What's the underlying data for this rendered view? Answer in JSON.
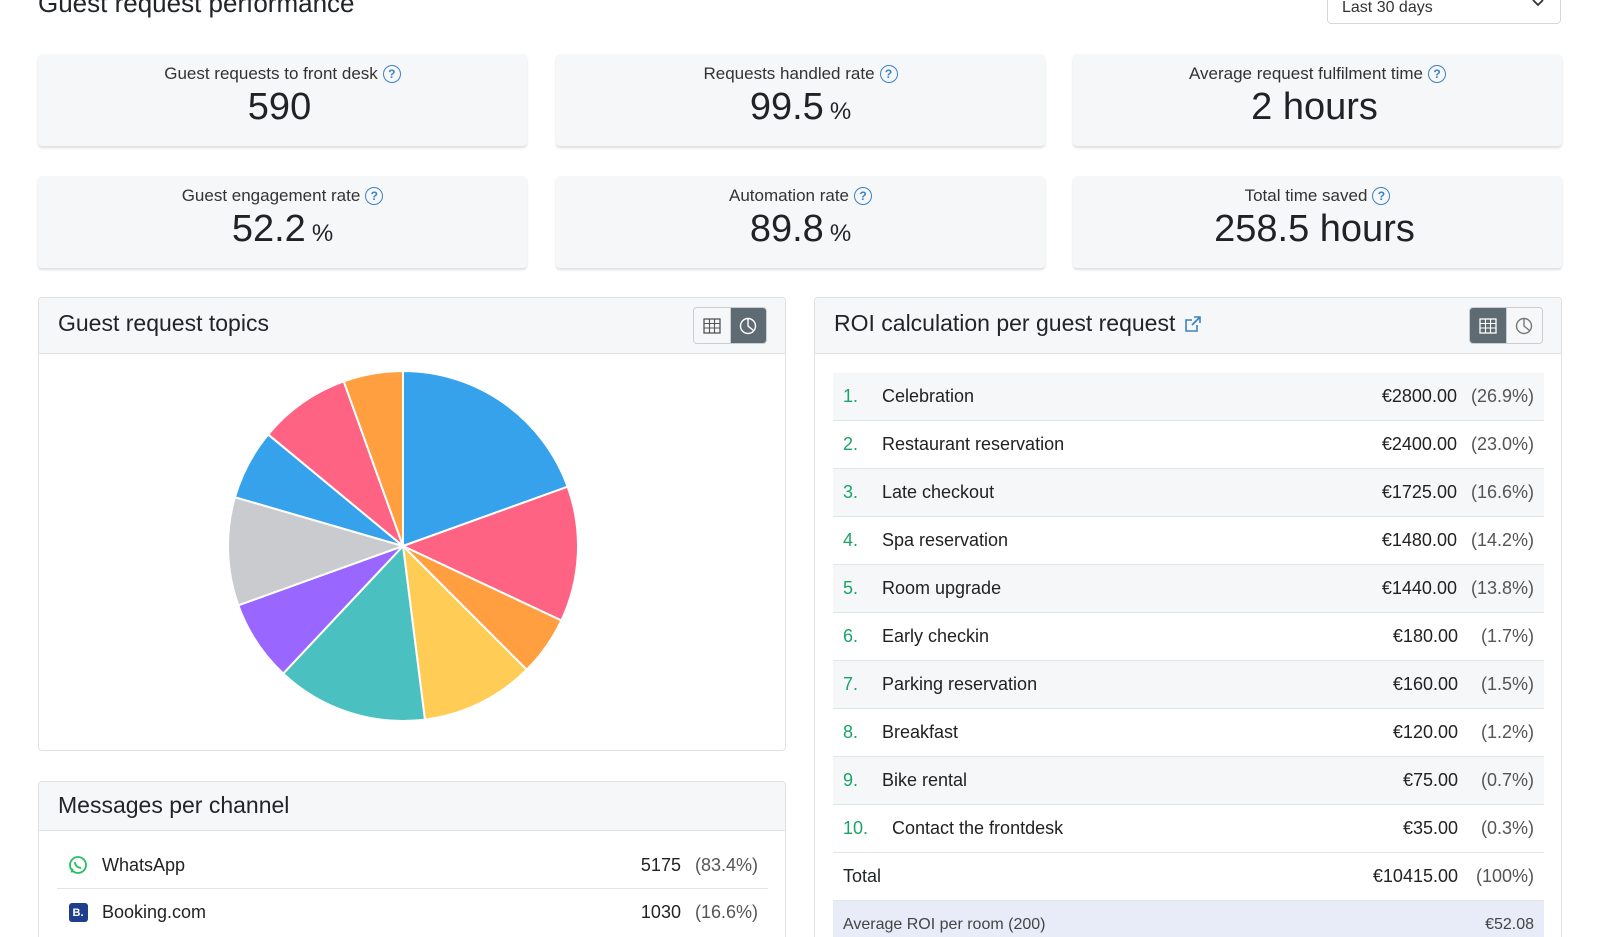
{
  "header": {
    "title": "Guest request performance",
    "date_range": "Last 30 days"
  },
  "kpis": [
    {
      "label": "Guest requests to front desk",
      "value": "590",
      "unit": ""
    },
    {
      "label": "Requests handled rate",
      "value": "99.5",
      "unit": "%"
    },
    {
      "label": "Average request fulfilment time",
      "value": "2 hours",
      "unit": ""
    },
    {
      "label": "Guest engagement rate",
      "value": "52.2",
      "unit": "%"
    },
    {
      "label": "Automation rate",
      "value": "89.8",
      "unit": "%"
    },
    {
      "label": "Total time saved",
      "value": "258.5 hours",
      "unit": ""
    }
  ],
  "topics_card": {
    "title": "Guest request topics",
    "active_view": "pie"
  },
  "chart_data": {
    "type": "pie",
    "title": "",
    "slices": [
      {
        "value": 19.5,
        "color": "#36a2eb"
      },
      {
        "value": 12.5,
        "color": "#ff6384"
      },
      {
        "value": 5.5,
        "color": "#ff9f40"
      },
      {
        "value": 10.5,
        "color": "#ffcd56"
      },
      {
        "value": 14.0,
        "color": "#4bc0c0"
      },
      {
        "value": 7.5,
        "color": "#9966ff"
      },
      {
        "value": 10.0,
        "color": "#c9cbcf"
      },
      {
        "value": 6.5,
        "color": "#36a2eb"
      },
      {
        "value": 8.5,
        "color": "#ff6384"
      },
      {
        "value": 5.5,
        "color": "#ff9f40"
      }
    ]
  },
  "roi_card": {
    "title": "ROI calculation per guest request",
    "active_view": "table",
    "rows": [
      {
        "num": "1.",
        "name": "Celebration",
        "amount": "€2800.00",
        "pct": "(26.9%)"
      },
      {
        "num": "2.",
        "name": "Restaurant reservation",
        "amount": "€2400.00",
        "pct": "(23.0%)"
      },
      {
        "num": "3.",
        "name": "Late checkout",
        "amount": "€1725.00",
        "pct": "(16.6%)"
      },
      {
        "num": "4.",
        "name": "Spa reservation",
        "amount": "€1480.00",
        "pct": "(14.2%)"
      },
      {
        "num": "5.",
        "name": "Room upgrade",
        "amount": "€1440.00",
        "pct": "(13.8%)"
      },
      {
        "num": "6.",
        "name": "Early checkin",
        "amount": "€180.00",
        "pct": "(1.7%)"
      },
      {
        "num": "7.",
        "name": "Parking reservation",
        "amount": "€160.00",
        "pct": "(1.5%)"
      },
      {
        "num": "8.",
        "name": "Breakfast",
        "amount": "€120.00",
        "pct": "(1.2%)"
      },
      {
        "num": "9.",
        "name": "Bike rental",
        "amount": "€75.00",
        "pct": "(0.7%)"
      },
      {
        "num": "10.",
        "name": "Contact the frontdesk",
        "amount": "€35.00",
        "pct": "(0.3%)"
      }
    ],
    "total": {
      "label": "Total",
      "amount": "€10415.00",
      "pct": "(100%)"
    },
    "average": {
      "label": "Average ROI per room (200)",
      "amount": "€52.08"
    }
  },
  "channels_card": {
    "title": "Messages per channel",
    "rows": [
      {
        "name": "WhatsApp",
        "icon": "whatsapp-icon",
        "value": "5175",
        "pct": "(83.4%)"
      },
      {
        "name": "Booking.com",
        "icon": "booking-icon",
        "value": "1030",
        "pct": "(16.6%)"
      }
    ]
  },
  "colors": {
    "accent_green": "#1aa566",
    "help_blue": "#3b82c4",
    "average_row_bg": "#e7ecf8"
  }
}
